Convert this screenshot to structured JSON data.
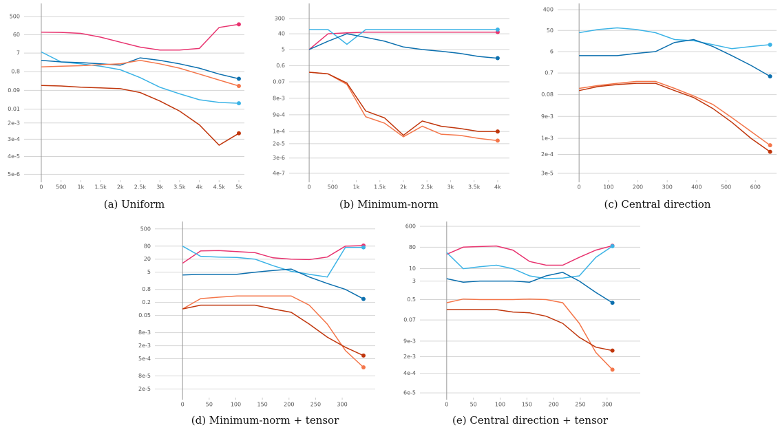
{
  "chart_data": [
    {
      "type": "line",
      "caption": "(a) Uniform",
      "ylog": true,
      "grid": true,
      "x": [
        0,
        500,
        1000,
        1500,
        2000,
        2500,
        3000,
        3500,
        4000,
        4500,
        5000
      ],
      "xlim": [
        -435,
        5140
      ],
      "ylim": [
        2.5e-06,
        2300
      ],
      "xticks": [
        0,
        500,
        {
          "value": 1000,
          "label": "1k"
        },
        {
          "value": 1500,
          "label": "1.5k"
        },
        {
          "value": 2000,
          "label": "2k"
        },
        {
          "value": 2500,
          "label": "2.5k"
        },
        {
          "value": 3000,
          "label": "3k"
        },
        {
          "value": 3500,
          "label": "3.5k"
        },
        {
          "value": 4000,
          "label": "4k"
        },
        {
          "value": 4500,
          "label": "4.5k"
        },
        {
          "value": 5000,
          "label": "5k"
        }
      ],
      "yticks": [
        500,
        60,
        7,
        0.8,
        0.09,
        0.01,
        {
          "value": 0.002,
          "label": "2e-3"
        },
        {
          "value": 0.0003,
          "label": "3e-4"
        },
        {
          "value": 4e-05,
          "label": "4e-5"
        },
        {
          "value": 5e-06,
          "label": "5e-6"
        }
      ],
      "series": [
        {
          "color": "#e8336f",
          "values": [
            80,
            78,
            70,
            45,
            25,
            14,
            10,
            10,
            12,
            140,
            200
          ]
        },
        {
          "color": "#3bb3e6",
          "values": [
            8,
            2.5,
            2,
            1.5,
            1,
            0.4,
            0.13,
            0.06,
            0.03,
            0.022,
            0.02
          ]
        },
        {
          "color": "#0b6fae",
          "values": [
            3,
            2.5,
            2.3,
            2,
            1.7,
            4,
            3,
            2,
            1.2,
            0.6,
            0.35
          ]
        },
        {
          "color": "#f4764a",
          "values": [
            1.4,
            1.5,
            1.6,
            1.8,
            2,
            3,
            2,
            1.2,
            0.6,
            0.3,
            0.15
          ]
        },
        {
          "color": "#c0360c",
          "values": [
            0.16,
            0.15,
            0.13,
            0.12,
            0.11,
            0.07,
            0.026,
            0.008,
            0.0016,
            0.00015,
            0.0006
          ]
        }
      ]
    },
    {
      "type": "line",
      "caption": "(b) Minimum-norm",
      "ylog": true,
      "grid": true,
      "x": [
        0,
        400,
        800,
        1200,
        1600,
        2000,
        2400,
        2800,
        3200,
        3600,
        4000
      ],
      "xlim": [
        -425,
        4250
      ],
      "ylim": [
        1.6e-07,
        2200
      ],
      "xticks": [
        0,
        500,
        {
          "value": 1000,
          "label": "1k"
        },
        {
          "value": 1500,
          "label": "1.5k"
        },
        {
          "value": 2000,
          "label": "2k"
        },
        {
          "value": 2500,
          "label": "2.5k"
        },
        {
          "value": 3000,
          "label": "3k"
        },
        {
          "value": 3500,
          "label": "3.5k"
        },
        {
          "value": 4000,
          "label": "4k"
        }
      ],
      "yticks": [
        300,
        40,
        5,
        0.6,
        0.07,
        {
          "value": 0.008,
          "label": "8e-3"
        },
        {
          "value": 0.0009,
          "label": "9e-4"
        },
        {
          "value": 0.0001,
          "label": "1e-4"
        },
        {
          "value": 2e-05,
          "label": "2e-5"
        },
        {
          "value": 3e-06,
          "label": "3e-6"
        },
        4e-07
      ],
      "series": [
        {
          "color": "#e8336f",
          "values": [
            5,
            40,
            45,
            50,
            50,
            50,
            50,
            50,
            50,
            50,
            50
          ]
        },
        {
          "color": "#3bb3e6",
          "values": [
            70,
            70,
            10,
            70,
            70,
            70,
            70,
            70,
            70,
            70,
            70
          ]
        },
        {
          "color": "#0b6fae",
          "values": [
            5,
            15,
            40,
            25,
            15,
            7,
            5,
            4,
            3,
            2,
            1.6
          ]
        },
        {
          "color": "#f4764a",
          "values": [
            0.25,
            0.2,
            0.05,
            0.0007,
            0.0003,
            5e-05,
            0.0002,
            7e-05,
            6e-05,
            4e-05,
            3e-05
          ]
        },
        {
          "color": "#c0360c",
          "values": [
            0.25,
            0.2,
            0.06,
            0.0015,
            0.0006,
            6e-05,
            0.0004,
            0.0002,
            0.00015,
            0.0001,
            0.0001
          ]
        }
      ]
    },
    {
      "type": "line",
      "caption": "(c) Central direction",
      "ylog": true,
      "grid": true,
      "x": [
        0,
        65,
        130,
        195,
        260,
        325,
        390,
        455,
        520,
        585,
        650
      ],
      "xlim": [
        -73,
        672
      ],
      "ylim": [
        1.5e-05,
        750
      ],
      "xticks": [
        0,
        100,
        200,
        300,
        400,
        500,
        600
      ],
      "yticks": [
        400,
        50,
        6,
        0.7,
        0.08,
        {
          "value": 0.009,
          "label": "9e-3"
        },
        {
          "value": 0.001,
          "label": "1e-3"
        },
        {
          "value": 0.0002,
          "label": "2e-4"
        },
        {
          "value": 3e-05,
          "label": "3e-5"
        }
      ],
      "series": [
        {
          "color": "#3bb3e6",
          "values": [
            40,
            55,
            65,
            55,
            40,
            20,
            18,
            12,
            8,
            10,
            12
          ]
        },
        {
          "color": "#0b6fae",
          "values": [
            4,
            4,
            4,
            5,
            6,
            15,
            20,
            10,
            4,
            1.5,
            0.5
          ]
        },
        {
          "color": "#f4764a",
          "values": [
            0.15,
            0.2,
            0.25,
            0.3,
            0.3,
            0.15,
            0.07,
            0.03,
            0.008,
            0.002,
            0.0005
          ]
        },
        {
          "color": "#c0360c",
          "values": [
            0.12,
            0.18,
            0.22,
            0.25,
            0.25,
            0.12,
            0.06,
            0.02,
            0.005,
            0.001,
            0.00026
          ]
        }
      ]
    },
    {
      "type": "line",
      "caption": "(d) Minimum-norm + tensor",
      "ylog": true,
      "grid": true,
      "x": [
        0,
        34,
        68,
        102,
        136,
        170,
        204,
        238,
        272,
        306,
        340
      ],
      "xlim": [
        -52,
        362
      ],
      "ylim": [
        8e-06,
        1100
      ],
      "xticks": [
        0,
        50,
        100,
        150,
        200,
        250,
        300
      ],
      "yticks": [
        500,
        80,
        20,
        5,
        0.8,
        0.2,
        0.05,
        {
          "value": 0.008,
          "label": "8e-3"
        },
        {
          "value": 0.002,
          "label": "2e-3"
        },
        {
          "value": 0.0005,
          "label": "5e-4"
        },
        {
          "value": 8e-05,
          "label": "8e-5"
        },
        {
          "value": 2e-05,
          "label": "2e-5"
        }
      ],
      "series": [
        {
          "color": "#e8336f",
          "values": [
            13,
            48,
            50,
            45,
            40,
            23,
            20,
            19,
            25,
            80,
            85
          ]
        },
        {
          "color": "#3bb3e6",
          "values": [
            80,
            27,
            25,
            24,
            20,
            10,
            5.5,
            4,
            3,
            70,
            70
          ]
        },
        {
          "color": "#0b6fae",
          "values": [
            3.7,
            4,
            4,
            4,
            5,
            6,
            7,
            3,
            1.5,
            0.8,
            0.29
          ]
        },
        {
          "color": "#f4764a",
          "values": [
            0.1,
            0.3,
            0.35,
            0.4,
            0.4,
            0.4,
            0.4,
            0.15,
            0.02,
            0.0012,
            0.0002
          ]
        },
        {
          "color": "#c0360c",
          "values": [
            0.1,
            0.15,
            0.15,
            0.15,
            0.15,
            0.1,
            0.07,
            0.02,
            0.005,
            0.0017,
            0.0007
          ]
        }
      ]
    },
    {
      "type": "line",
      "caption": "(e) Central direction + tensor",
      "ylog": true,
      "grid": true,
      "x": [
        0,
        31,
        62,
        93,
        124,
        155,
        186,
        217,
        248,
        279,
        310
      ],
      "xlim": [
        -50,
        362
      ],
      "ylim": [
        3.8e-05,
        960
      ],
      "xticks": [
        0,
        50,
        100,
        150,
        200,
        250,
        300
      ],
      "yticks": [
        600,
        80,
        10,
        3,
        0.5,
        0.07,
        {
          "value": 0.009,
          "label": "9e-3"
        },
        {
          "value": 0.002,
          "label": "2e-3"
        },
        {
          "value": 0.0004,
          "label": "4e-4"
        },
        {
          "value": 6e-05,
          "label": "6e-5"
        }
      ],
      "series": [
        {
          "color": "#e8336f",
          "values": [
            40,
            80,
            85,
            90,
            60,
            20,
            14,
            14,
            30,
            60,
            92
          ]
        },
        {
          "color": "#3bb3e6",
          "values": [
            48,
            10,
            12,
            14,
            10,
            5,
            3.8,
            4,
            5,
            30,
            88
          ]
        },
        {
          "color": "#0b6fae",
          "values": [
            3.8,
            2.7,
            3,
            3,
            3,
            2.7,
            5,
            7,
            3,
            1,
            0.37
          ]
        },
        {
          "color": "#f4764a",
          "values": [
            0.37,
            0.53,
            0.5,
            0.5,
            0.5,
            0.53,
            0.5,
            0.37,
            0.05,
            0.003,
            0.00057
          ]
        },
        {
          "color": "#c0360c",
          "values": [
            0.19,
            0.19,
            0.19,
            0.19,
            0.15,
            0.14,
            0.1,
            0.05,
            0.013,
            0.005,
            0.0036
          ]
        }
      ]
    }
  ]
}
